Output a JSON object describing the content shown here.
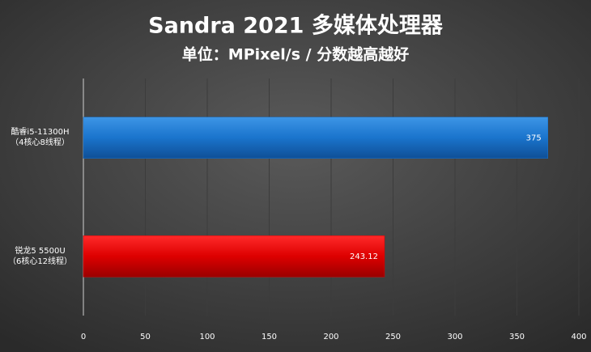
{
  "chart_data": {
    "type": "bar",
    "orientation": "horizontal",
    "title": "Sandra 2021 多媒体处理器",
    "subtitle": "单位：MPixel/s / 分数越高越好",
    "categories": [
      "酷睿i5-11300H\n（4核心8线程）",
      "锐龙5 5500U\n（6核心12线程）"
    ],
    "values": [
      375,
      243.12
    ],
    "colors": [
      "#1a74cc",
      "#dd0000"
    ],
    "xlim": [
      0,
      400
    ],
    "xticks": [
      0,
      50,
      100,
      150,
      200,
      250,
      300,
      350,
      400
    ],
    "grid": true
  }
}
